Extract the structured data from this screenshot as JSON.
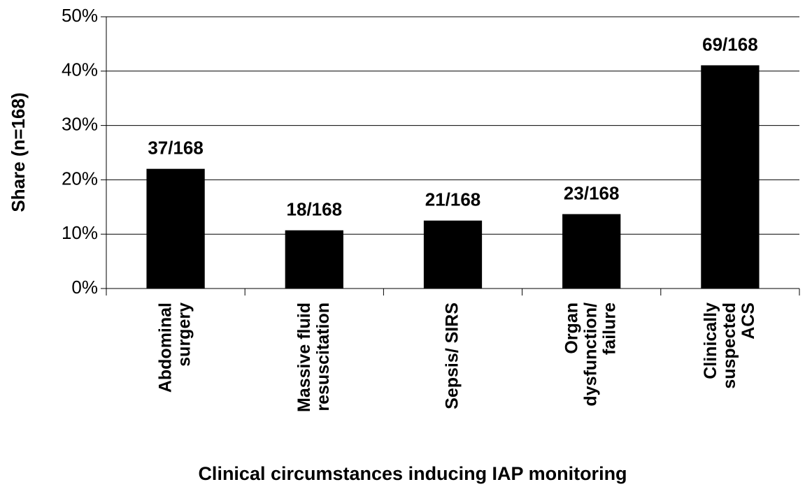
{
  "chart_data": {
    "type": "bar",
    "x_label": "Clinical circumstances inducing IAP monitoring",
    "y_label": "Share (n=168)",
    "categories": [
      "Abdominal\nsurgery",
      "Massive fluid\nresuscitation",
      "Sepsis/ SIRS",
      "Organ\ndysfunction/\nfailure",
      "Clinically\nsuspected\nACS"
    ],
    "values": [
      22.02,
      10.71,
      12.5,
      13.69,
      41.07
    ],
    "value_labels": [
      "37/168",
      "18/168",
      "21/168",
      "23/168",
      "69/168"
    ],
    "color": "#000000",
    "ylim": [
      0,
      50
    ],
    "yticks": [
      {
        "value": 0,
        "label": "0%"
      },
      {
        "value": 10,
        "label": "10%"
      },
      {
        "value": 20,
        "label": "20%"
      },
      {
        "value": 30,
        "label": "30%"
      },
      {
        "value": 40,
        "label": "40%"
      },
      {
        "value": 50,
        "label": "50%"
      }
    ],
    "grid": true
  }
}
